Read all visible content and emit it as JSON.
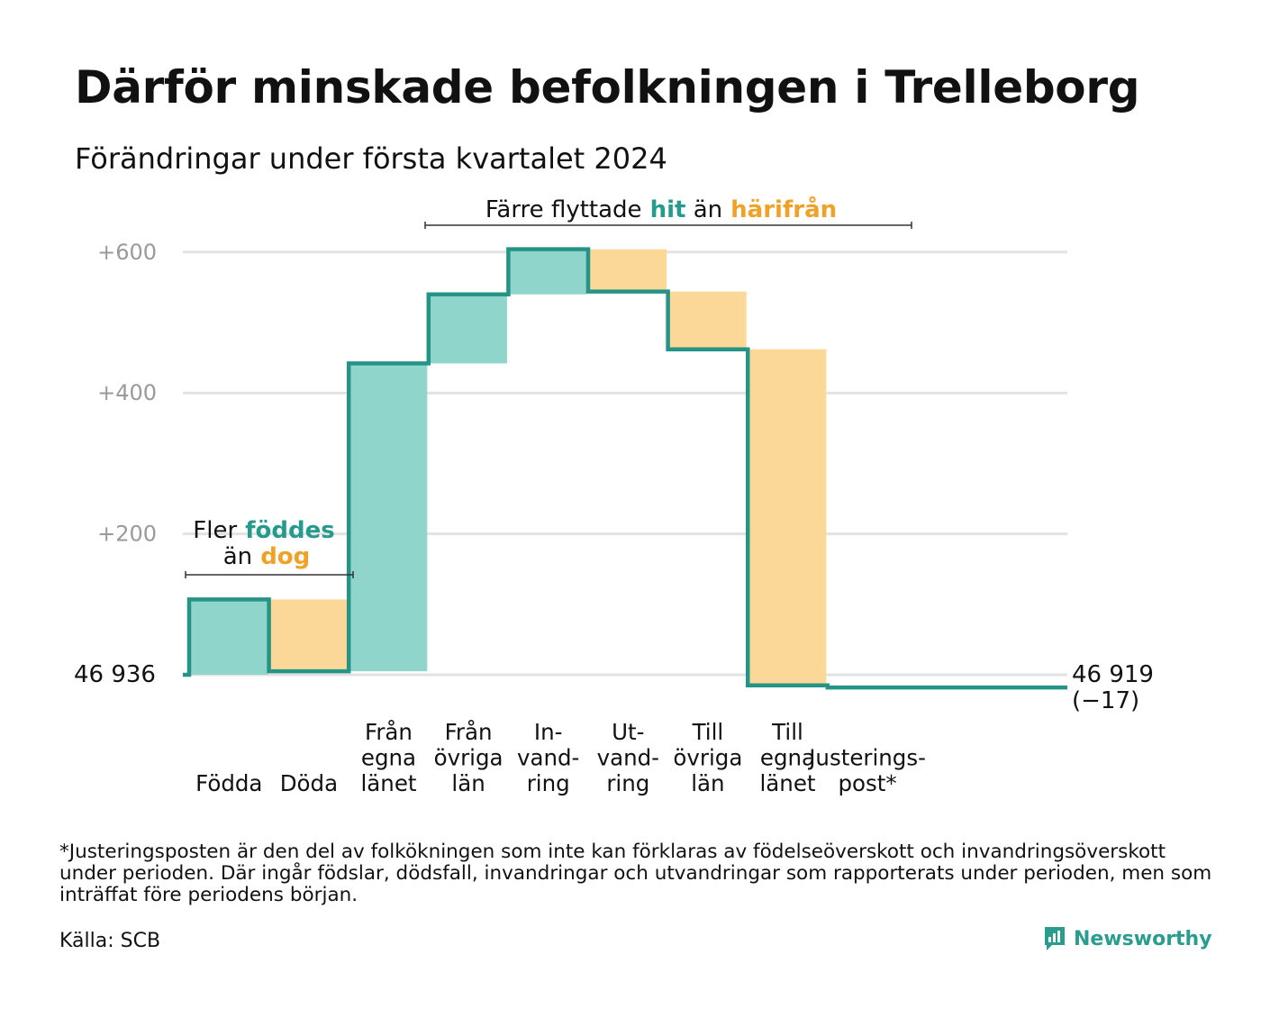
{
  "title": "Därför minskade befolkningen i Trelleborg",
  "subtitle": "Förändringar under första kvartalet 2024",
  "colors": {
    "gain": "#8fd5cb",
    "loss": "#fbd898",
    "line": "#259486",
    "gain_text": "#269a8c",
    "loss_text": "#f0a127",
    "grid": "#e2e2e2",
    "tick": "#9a9a9a"
  },
  "chart_data": {
    "type": "bar",
    "subtype": "waterfall",
    "start_label": "46  936",
    "start_value": 46936,
    "end_label": "46 919",
    "end_change_label": "(−17)",
    "end_value": 46919,
    "ylim": [
      -20,
      620
    ],
    "yticks": [
      {
        "value": 200,
        "label": "+200"
      },
      {
        "value": 400,
        "label": "+400"
      },
      {
        "value": 600,
        "label": "+600"
      }
    ],
    "grid": true,
    "categories": [
      "Födda",
      "Döda",
      "Från egna länet",
      "Från övriga län",
      "In-vandring",
      "Ut-vandring",
      "Till övriga län",
      "Till egna länet",
      "Justerings-post*"
    ],
    "steps": [
      {
        "category": "Födda",
        "label_lines": [
          "Födda"
        ],
        "change": 107,
        "type": "gain"
      },
      {
        "category": "Döda",
        "label_lines": [
          "Döda"
        ],
        "change": -102,
        "type": "loss"
      },
      {
        "category": "Från egna länet",
        "label_lines": [
          "Från",
          "egna",
          "länet"
        ],
        "change": 437,
        "type": "gain"
      },
      {
        "category": "Från övriga län",
        "label_lines": [
          "Från",
          "övriga",
          "län"
        ],
        "change": 98,
        "type": "gain"
      },
      {
        "category": "In-vandring",
        "label_lines": [
          "In-",
          "vand-",
          "ring"
        ],
        "change": 64,
        "type": "gain"
      },
      {
        "category": "Ut-vandring",
        "label_lines": [
          "Ut-",
          "vand-",
          "ring"
        ],
        "change": -60,
        "type": "loss"
      },
      {
        "category": "Till övriga län",
        "label_lines": [
          "Till",
          "övriga",
          "län"
        ],
        "change": -82,
        "type": "loss"
      },
      {
        "category": "Till egna länet",
        "label_lines": [
          "Till",
          "egna",
          "länet"
        ],
        "change": -477,
        "type": "loss"
      },
      {
        "category": "Justerings-post*",
        "label_lines": [
          "Justerings-",
          "post*"
        ],
        "change": -3,
        "type": "adjustment"
      }
    ],
    "annotations": [
      {
        "parts": [
          {
            "text": "Fler",
            "style": "plain"
          },
          {
            "text": "föddes",
            "style": "gain"
          }
        ],
        "line2": [
          {
            "text": "än",
            "style": "plain"
          },
          {
            "text": "dog",
            "style": "loss"
          }
        ]
      },
      {
        "parts": [
          {
            "text": "Färre flyttade",
            "style": "plain"
          },
          {
            "text": "hit",
            "style": "gain"
          },
          {
            "text": "än",
            "style": "plain"
          },
          {
            "text": "härifrån",
            "style": "loss"
          }
        ]
      }
    ]
  },
  "footnote": "*Justeringsposten är den del av folkökningen som inte kan förklaras av födelseöverskott och invandringsöverskott under perioden. Där ingår födslar, dödsfall, invandringar och utvandringar som rapporterats under perioden, men som inträffat före periodens början.",
  "source": "Källa: SCB",
  "logo": {
    "name": "Newsworthy",
    "icon": "newsworthy-logo-icon"
  }
}
